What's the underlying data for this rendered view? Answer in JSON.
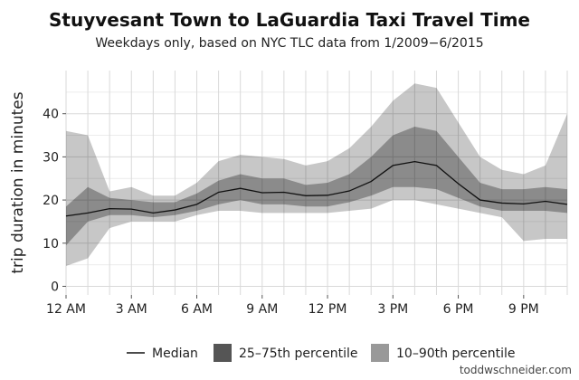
{
  "chart_data": {
    "type": "area",
    "title": "Stuyvesant Town to LaGuardia Taxi Travel Time",
    "subtitle": "Weekdays only, based on NYC TLC data from 1/2009−6/2015",
    "ylabel": "trip duration in minutes",
    "xlabel": "",
    "x": [
      0,
      1,
      2,
      3,
      4,
      5,
      6,
      7,
      8,
      9,
      10,
      11,
      12,
      13,
      14,
      15,
      16,
      17,
      18,
      19,
      20,
      21,
      22,
      23
    ],
    "xlim": [
      0,
      23
    ],
    "ylim": [
      -2,
      50
    ],
    "x_ticks": [
      {
        "value": 0,
        "label": "12 AM"
      },
      {
        "value": 3,
        "label": "3 AM"
      },
      {
        "value": 6,
        "label": "6 AM"
      },
      {
        "value": 9,
        "label": "9 AM"
      },
      {
        "value": 12,
        "label": "12 PM"
      },
      {
        "value": 15,
        "label": "3 PM"
      },
      {
        "value": 18,
        "label": "6 PM"
      },
      {
        "value": 21,
        "label": "9 PM"
      }
    ],
    "y_ticks": [
      0,
      10,
      20,
      30,
      40
    ],
    "grid": true,
    "legend_position": "bottom",
    "series": [
      {
        "name": "Median",
        "values": [
          16.3,
          17.0,
          18.0,
          17.9,
          17.0,
          17.7,
          19.0,
          21.8,
          22.7,
          21.7,
          21.8,
          21.0,
          21.1,
          22.1,
          24.3,
          28.0,
          28.9,
          28.0,
          23.8,
          20.0,
          19.3,
          19.1,
          19.7,
          19.0
        ]
      },
      {
        "name": "25–75th percentile",
        "lower": [
          9.5,
          15.0,
          16.5,
          16.5,
          16.0,
          16.5,
          17.5,
          19.0,
          20.0,
          19.0,
          19.0,
          18.5,
          18.5,
          19.5,
          21.0,
          23.0,
          23.0,
          22.5,
          20.5,
          18.5,
          17.5,
          17.5,
          17.5,
          17.0
        ],
        "upper": [
          18.5,
          23.0,
          20.5,
          20.0,
          19.5,
          19.5,
          21.5,
          24.5,
          26.0,
          25.0,
          25.0,
          23.5,
          24.0,
          26.0,
          30.0,
          35.0,
          37.0,
          36.0,
          30.0,
          24.0,
          22.5,
          22.5,
          23.0,
          22.5
        ]
      },
      {
        "name": "10–90th percentile",
        "lower": [
          4.7,
          6.5,
          13.5,
          15.0,
          15.0,
          15.0,
          16.5,
          17.5,
          17.5,
          17.0,
          17.0,
          17.0,
          17.0,
          17.5,
          18.0,
          20.0,
          20.0,
          19.0,
          18.0,
          17.0,
          16.0,
          10.5,
          11.0,
          11.0
        ],
        "upper": [
          36.0,
          35.0,
          22.0,
          23.0,
          21.0,
          21.0,
          24.0,
          29.0,
          30.5,
          30.0,
          29.5,
          28.0,
          29.0,
          32.0,
          37.0,
          43.0,
          47.0,
          46.0,
          38.0,
          30.0,
          27.0,
          26.0,
          28.0,
          40.0
        ]
      }
    ],
    "colors": {
      "band_outer": "#c7c7c7",
      "band_inner": "#8c8c8c",
      "median": "#111111",
      "legend_inner": "#555555",
      "legend_outer": "#999999",
      "grid": "#d9d9d9"
    }
  },
  "credit": "toddwschneider.com"
}
